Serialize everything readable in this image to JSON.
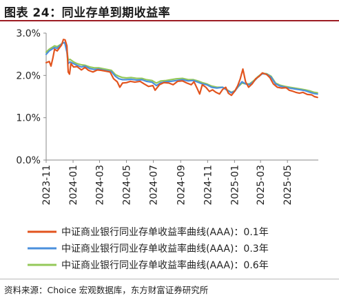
{
  "figure": {
    "title": "图表 24：同业存单到期收益率",
    "source": "资料来源：Choice 宏观数据库，东方财富证券研究所"
  },
  "chart_data": {
    "type": "line",
    "title": "",
    "xlabel": "",
    "ylabel": "",
    "x_ticks": [
      "2023-11",
      "2024-01",
      "2024-03",
      "2024-05",
      "2024-07",
      "2024-09",
      "2024-11",
      "2025-01",
      "2025-03",
      "2025-05"
    ],
    "y_ticks": [
      "0.0%",
      "1.0%",
      "2.0%",
      "3.0%"
    ],
    "ylim": [
      0,
      3.0
    ],
    "xlim": [
      "2023-11-01",
      "2025-07-10"
    ],
    "grid": false,
    "legend_position": "bottom",
    "series": [
      {
        "name": "中证商业银行同业存单收益率曲线(AAA)：0.1年",
        "color": "#e2541e",
        "values": [
          [
            "2023-11-01",
            2.3
          ],
          [
            "2023-11-08",
            2.33
          ],
          [
            "2023-11-12",
            2.22
          ],
          [
            "2023-11-16",
            2.4
          ],
          [
            "2023-11-20",
            2.62
          ],
          [
            "2023-11-26",
            2.58
          ],
          [
            "2023-12-01",
            2.65
          ],
          [
            "2023-12-06",
            2.72
          ],
          [
            "2023-12-10",
            2.85
          ],
          [
            "2023-12-14",
            2.84
          ],
          [
            "2023-12-18",
            2.7
          ],
          [
            "2023-12-21",
            2.08
          ],
          [
            "2023-12-24",
            2.03
          ],
          [
            "2023-12-27",
            2.28
          ],
          [
            "2024-01-02",
            2.2
          ],
          [
            "2024-01-10",
            2.21
          ],
          [
            "2024-01-20",
            2.13
          ],
          [
            "2024-01-28",
            2.19
          ],
          [
            "2024-02-05",
            2.12
          ],
          [
            "2024-02-15",
            2.08
          ],
          [
            "2024-02-25",
            2.13
          ],
          [
            "2024-03-05",
            2.12
          ],
          [
            "2024-03-15",
            2.1
          ],
          [
            "2024-03-25",
            2.08
          ],
          [
            "2024-04-02",
            1.92
          ],
          [
            "2024-04-10",
            1.85
          ],
          [
            "2024-04-16",
            1.72
          ],
          [
            "2024-04-22",
            1.82
          ],
          [
            "2024-05-01",
            1.83
          ],
          [
            "2024-05-10",
            1.86
          ],
          [
            "2024-05-20",
            1.84
          ],
          [
            "2024-06-01",
            1.86
          ],
          [
            "2024-06-10",
            1.8
          ],
          [
            "2024-06-20",
            1.74
          ],
          [
            "2024-06-30",
            1.76
          ],
          [
            "2024-07-05",
            1.65
          ],
          [
            "2024-07-15",
            1.78
          ],
          [
            "2024-07-25",
            1.83
          ],
          [
            "2024-08-05",
            1.82
          ],
          [
            "2024-08-15",
            1.78
          ],
          [
            "2024-08-25",
            1.86
          ],
          [
            "2024-09-05",
            1.87
          ],
          [
            "2024-09-15",
            1.82
          ],
          [
            "2024-09-25",
            1.78
          ],
          [
            "2024-10-01",
            1.85
          ],
          [
            "2024-10-08",
            1.7
          ],
          [
            "2024-10-14",
            1.56
          ],
          [
            "2024-10-20",
            1.78
          ],
          [
            "2024-10-28",
            1.72
          ],
          [
            "2024-11-05",
            1.62
          ],
          [
            "2024-11-12",
            1.66
          ],
          [
            "2024-11-20",
            1.6
          ],
          [
            "2024-11-28",
            1.56
          ],
          [
            "2024-12-05",
            1.67
          ],
          [
            "2024-12-12",
            1.72
          ],
          [
            "2024-12-18",
            1.58
          ],
          [
            "2024-12-25",
            1.53
          ],
          [
            "2025-01-01",
            1.62
          ],
          [
            "2025-01-08",
            1.75
          ],
          [
            "2025-01-14",
            1.92
          ],
          [
            "2025-01-20",
            2.15
          ],
          [
            "2025-01-26",
            1.85
          ],
          [
            "2025-02-02",
            1.72
          ],
          [
            "2025-02-10",
            1.8
          ],
          [
            "2025-02-18",
            1.92
          ],
          [
            "2025-02-26",
            1.98
          ],
          [
            "2025-03-05",
            2.06
          ],
          [
            "2025-03-15",
            2.02
          ],
          [
            "2025-03-22",
            1.95
          ],
          [
            "2025-03-30",
            1.8
          ],
          [
            "2025-04-08",
            1.72
          ],
          [
            "2025-04-18",
            1.7
          ],
          [
            "2025-04-28",
            1.71
          ],
          [
            "2025-05-05",
            1.65
          ],
          [
            "2025-05-12",
            1.63
          ],
          [
            "2025-05-20",
            1.6
          ],
          [
            "2025-05-28",
            1.58
          ],
          [
            "2025-06-05",
            1.6
          ],
          [
            "2025-06-15",
            1.55
          ],
          [
            "2025-06-25",
            1.54
          ],
          [
            "2025-07-01",
            1.5
          ],
          [
            "2025-07-08",
            1.48
          ]
        ]
      },
      {
        "name": "中证商业银行同业存单收益率曲线(AAA)：0.3年",
        "color": "#4a8fdc",
        "values": [
          [
            "2023-11-01",
            2.5
          ],
          [
            "2023-11-08",
            2.58
          ],
          [
            "2023-11-14",
            2.62
          ],
          [
            "2023-11-20",
            2.66
          ],
          [
            "2023-11-26",
            2.64
          ],
          [
            "2023-12-02",
            2.7
          ],
          [
            "2023-12-08",
            2.76
          ],
          [
            "2023-12-13",
            2.78
          ],
          [
            "2023-12-18",
            2.55
          ],
          [
            "2023-12-21",
            2.28
          ],
          [
            "2023-12-25",
            2.32
          ],
          [
            "2024-01-02",
            2.28
          ],
          [
            "2024-01-10",
            2.24
          ],
          [
            "2024-01-20",
            2.2
          ],
          [
            "2024-01-28",
            2.22
          ],
          [
            "2024-02-08",
            2.16
          ],
          [
            "2024-02-18",
            2.14
          ],
          [
            "2024-02-28",
            2.15
          ],
          [
            "2024-03-08",
            2.13
          ],
          [
            "2024-03-18",
            2.11
          ],
          [
            "2024-03-28",
            2.09
          ],
          [
            "2024-04-06",
            1.98
          ],
          [
            "2024-04-14",
            1.92
          ],
          [
            "2024-04-22",
            1.9
          ],
          [
            "2024-05-01",
            1.9
          ],
          [
            "2024-05-12",
            1.91
          ],
          [
            "2024-05-24",
            1.89
          ],
          [
            "2024-06-05",
            1.9
          ],
          [
            "2024-06-15",
            1.86
          ],
          [
            "2024-06-28",
            1.84
          ],
          [
            "2024-07-08",
            1.76
          ],
          [
            "2024-07-18",
            1.83
          ],
          [
            "2024-07-30",
            1.85
          ],
          [
            "2024-08-10",
            1.86
          ],
          [
            "2024-08-22",
            1.88
          ],
          [
            "2024-09-05",
            1.9
          ],
          [
            "2024-09-18",
            1.87
          ],
          [
            "2024-09-30",
            1.88
          ],
          [
            "2024-10-10",
            1.84
          ],
          [
            "2024-10-20",
            1.8
          ],
          [
            "2024-10-30",
            1.78
          ],
          [
            "2024-11-10",
            1.72
          ],
          [
            "2024-11-22",
            1.7
          ],
          [
            "2024-12-05",
            1.72
          ],
          [
            "2024-12-15",
            1.65
          ],
          [
            "2024-12-25",
            1.59
          ],
          [
            "2025-01-02",
            1.63
          ],
          [
            "2025-01-10",
            1.75
          ],
          [
            "2025-01-18",
            1.85
          ],
          [
            "2025-01-26",
            1.8
          ],
          [
            "2025-02-04",
            1.78
          ],
          [
            "2025-02-14",
            1.86
          ],
          [
            "2025-02-24",
            1.97
          ],
          [
            "2025-03-05",
            2.04
          ],
          [
            "2025-03-15",
            2.03
          ],
          [
            "2025-03-25",
            1.96
          ],
          [
            "2025-04-04",
            1.8
          ],
          [
            "2025-04-14",
            1.75
          ],
          [
            "2025-04-26",
            1.72
          ],
          [
            "2025-05-06",
            1.7
          ],
          [
            "2025-05-18",
            1.68
          ],
          [
            "2025-05-30",
            1.66
          ],
          [
            "2025-06-10",
            1.64
          ],
          [
            "2025-06-22",
            1.6
          ],
          [
            "2025-07-01",
            1.57
          ],
          [
            "2025-07-08",
            1.56
          ]
        ]
      },
      {
        "name": "中证商业银行同业存单收益率曲线(AAA)：0.6年",
        "color": "#94c859",
        "values": [
          [
            "2023-11-01",
            2.55
          ],
          [
            "2023-11-08",
            2.62
          ],
          [
            "2023-11-14",
            2.66
          ],
          [
            "2023-11-20",
            2.7
          ],
          [
            "2023-11-26",
            2.68
          ],
          [
            "2023-12-02",
            2.72
          ],
          [
            "2023-12-08",
            2.76
          ],
          [
            "2023-12-13",
            2.78
          ],
          [
            "2023-12-18",
            2.6
          ],
          [
            "2023-12-21",
            2.36
          ],
          [
            "2023-12-25",
            2.38
          ],
          [
            "2024-01-02",
            2.32
          ],
          [
            "2024-01-10",
            2.28
          ],
          [
            "2024-01-20",
            2.25
          ],
          [
            "2024-01-28",
            2.24
          ],
          [
            "2024-02-08",
            2.2
          ],
          [
            "2024-02-18",
            2.18
          ],
          [
            "2024-02-28",
            2.18
          ],
          [
            "2024-03-08",
            2.16
          ],
          [
            "2024-03-18",
            2.14
          ],
          [
            "2024-03-28",
            2.12
          ],
          [
            "2024-04-06",
            2.02
          ],
          [
            "2024-04-14",
            1.98
          ],
          [
            "2024-04-22",
            1.95
          ],
          [
            "2024-05-01",
            1.94
          ],
          [
            "2024-05-12",
            1.95
          ],
          [
            "2024-05-24",
            1.93
          ],
          [
            "2024-06-05",
            1.93
          ],
          [
            "2024-06-15",
            1.9
          ],
          [
            "2024-06-28",
            1.88
          ],
          [
            "2024-07-08",
            1.82
          ],
          [
            "2024-07-18",
            1.87
          ],
          [
            "2024-07-30",
            1.88
          ],
          [
            "2024-08-10",
            1.9
          ],
          [
            "2024-08-22",
            1.92
          ],
          [
            "2024-09-05",
            1.93
          ],
          [
            "2024-09-18",
            1.9
          ],
          [
            "2024-09-30",
            1.9
          ],
          [
            "2024-10-10",
            1.87
          ],
          [
            "2024-10-20",
            1.83
          ],
          [
            "2024-10-30",
            1.8
          ],
          [
            "2024-11-10",
            1.75
          ],
          [
            "2024-11-22",
            1.72
          ],
          [
            "2024-12-05",
            1.72
          ],
          [
            "2024-12-15",
            1.66
          ],
          [
            "2024-12-25",
            1.6
          ],
          [
            "2025-01-02",
            1.64
          ],
          [
            "2025-01-10",
            1.74
          ],
          [
            "2025-01-18",
            1.82
          ],
          [
            "2025-01-26",
            1.8
          ],
          [
            "2025-02-04",
            1.8
          ],
          [
            "2025-02-14",
            1.88
          ],
          [
            "2025-02-24",
            1.98
          ],
          [
            "2025-03-05",
            2.05
          ],
          [
            "2025-03-15",
            2.04
          ],
          [
            "2025-03-25",
            1.98
          ],
          [
            "2025-04-04",
            1.82
          ],
          [
            "2025-04-14",
            1.77
          ],
          [
            "2025-04-26",
            1.74
          ],
          [
            "2025-05-06",
            1.72
          ],
          [
            "2025-05-18",
            1.7
          ],
          [
            "2025-05-30",
            1.68
          ],
          [
            "2025-06-10",
            1.66
          ],
          [
            "2025-06-22",
            1.63
          ],
          [
            "2025-07-01",
            1.6
          ],
          [
            "2025-07-08",
            1.59
          ]
        ]
      }
    ]
  }
}
